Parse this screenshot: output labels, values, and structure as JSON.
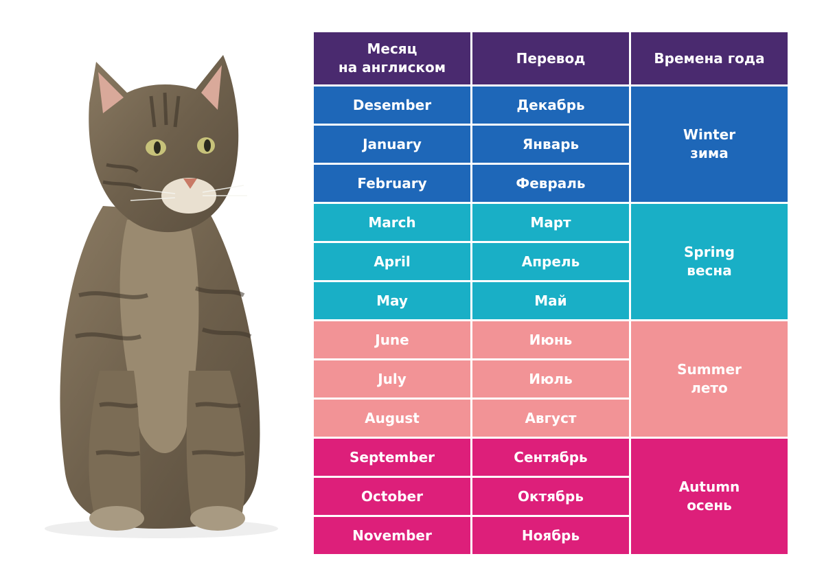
{
  "header": {
    "month_line1": "Месяц",
    "month_line2": "на англиском",
    "translation": "Перевод",
    "seasons": "Времена года"
  },
  "groups": [
    {
      "season_en": "Winter",
      "season_ru": "зима",
      "months": [
        {
          "en": "Desember",
          "ru": "Декабрь"
        },
        {
          "en": "January",
          "ru": "Январь"
        },
        {
          "en": "February",
          "ru": "Февраль"
        }
      ]
    },
    {
      "season_en": "Spring",
      "season_ru": "весна",
      "months": [
        {
          "en": "March",
          "ru": "Март"
        },
        {
          "en": "April",
          "ru": "Апрель"
        },
        {
          "en": "May",
          "ru": "Май"
        }
      ]
    },
    {
      "season_en": "Summer",
      "season_ru": "лето",
      "months": [
        {
          "en": "June",
          "ru": "Июнь"
        },
        {
          "en": "July",
          "ru": "Июль"
        },
        {
          "en": "August",
          "ru": "Август"
        }
      ]
    },
    {
      "season_en": "Autumn",
      "season_ru": "осень",
      "months": [
        {
          "en": "September",
          "ru": "Сентябрь"
        },
        {
          "en": "October",
          "ru": "Октябрь"
        },
        {
          "en": "November",
          "ru": "Ноябрь"
        }
      ]
    }
  ]
}
